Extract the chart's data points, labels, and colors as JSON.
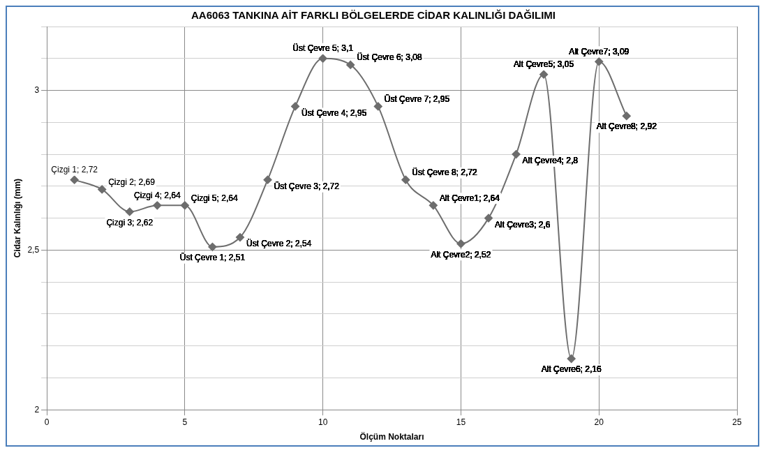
{
  "chart_data": {
    "type": "line",
    "title": "AA6063 TANKINA AİT FARKLI BÖLGELERDE CİDAR KALINLIĞI DAĞILIMI",
    "xlabel": "Ölçüm Noktaları",
    "ylabel": "Cidar Kalınlığı (mm)",
    "x": [
      1,
      2,
      3,
      4,
      5,
      6,
      7,
      8,
      9,
      10,
      11,
      12,
      13,
      14,
      15,
      16,
      17,
      18,
      19,
      20,
      21
    ],
    "series": [
      {
        "color": "#6d6d6d",
        "values": [
          2.72,
          2.69,
          2.62,
          2.64,
          2.64,
          2.51,
          2.54,
          2.72,
          2.95,
          3.1,
          3.08,
          2.95,
          2.72,
          2.64,
          2.52,
          2.6,
          2.8,
          3.05,
          2.16,
          3.09,
          2.92
        ],
        "value_labels": [
          "Çizgi 1; 2,72",
          "Çizgi 2; 2,69",
          "Çizgi 3; 2,62",
          "Çizgi 4; 2,64",
          "Çizgi 5; 2,64",
          "Üst Çevre 1; 2,51",
          "Üst Çevre 2; 2,54",
          "Üst Çevre 3; 2,72",
          "Üst Çevre 4; 2,95",
          "Üst Çevre 5; 3,1",
          "Üst Çevre 6; 3,08",
          "Üst Çevre 7; 2,95",
          "Üst Çevre 8; 2,72",
          "Alt Çevre1; 2,64",
          "Alt Çevre2; 2,52",
          "Alt Çevre3; 2,6",
          "Alt Çevre4; 2,8",
          "Alt Çevre5; 3,05",
          "Alt Çevre6; 2,16",
          "Alt Çevre7; 3,09",
          "Alt Çevre8; 2,92"
        ]
      }
    ],
    "xlim": [
      0,
      25
    ],
    "xticks": [
      0,
      5,
      10,
      15,
      20,
      25
    ],
    "ylim": [
      2,
      3.2
    ],
    "yticks": [
      2,
      {
        "value": 2.1,
        "label": null
      },
      {
        "value": 2.2,
        "label": null
      },
      {
        "value": 2.3,
        "label": null
      },
      {
        "value": 2.4,
        "label": null
      },
      {
        "value": 2.5,
        "label": "2,5"
      },
      {
        "value": 2.6,
        "label": null
      },
      {
        "value": 2.7,
        "label": null
      },
      {
        "value": 2.8,
        "label": null
      },
      {
        "value": 2.9,
        "label": null
      },
      3,
      {
        "value": 3.1,
        "label": null
      },
      {
        "value": 3.2,
        "label": null
      }
    ],
    "grid": true,
    "legend": false,
    "marker": "diamond",
    "line_style": "solid"
  }
}
